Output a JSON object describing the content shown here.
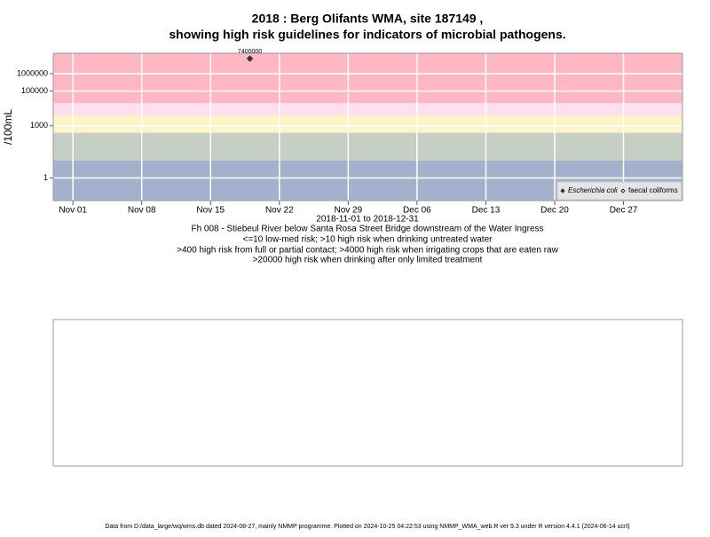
{
  "chart_data": {
    "type": "scatter",
    "title": "2018 : Berg Olifants WMA, site 187149 ,",
    "subtitle": "showing high risk guidelines for indicators of microbial pathogens.",
    "y_label": "/100mL",
    "x_label": "2018-11-01 to 2018-12-31",
    "notes": [
      "Fh 008 - Stiebeul River below Santa Rosa Street Bridge downstream of the Water Ingress",
      "<=10 low-med risk; >10 high risk when drinking untreated water",
      ">400 high risk from full or partial contact; >4000 high risk when irrigating crops that are eaten raw",
      ">20000 high risk when drinking after only limited treatment"
    ],
    "footer": "Data from D:/data_large/wq/wms.db dated 2024-08-27, mainly NMMP programme. Plotted on 2024-10-25 04:22:53 using NMMP_WMA_web.R ver 9.3 under R version 4.4.1 (2024-06-14 ucrt)",
    "log_y": true,
    "grid": true,
    "legend_position": "bottom-right",
    "thresholds": [
      10,
      400,
      4000,
      20000
    ],
    "band_colors": [
      "#a3b1cc",
      "#c6cfc4",
      "#fdf5c8",
      "#fde0ee",
      "#ffb7c3"
    ],
    "xlim": [
      "2018-10-30",
      "2019-01-02"
    ],
    "xticks": [
      {
        "value": "2018-11-01",
        "label": "Nov 01"
      },
      {
        "value": "2018-11-08",
        "label": "Nov 08"
      },
      {
        "value": "2018-11-15",
        "label": "Nov 15"
      },
      {
        "value": "2018-11-22",
        "label": "Nov 22"
      },
      {
        "value": "2018-11-29",
        "label": "Nov 29"
      },
      {
        "value": "2018-12-06",
        "label": "Dec 06"
      },
      {
        "value": "2018-12-13",
        "label": "Dec 13"
      },
      {
        "value": "2018-12-20",
        "label": "Dec 20"
      },
      {
        "value": "2018-12-27",
        "label": "Dec 27"
      }
    ],
    "ylim": [
      0.05,
      15000000
    ],
    "yticks": [
      1,
      1000,
      100000,
      1000000
    ],
    "series": [
      {
        "name": "Escherichia coli",
        "color": "#333333",
        "x": [
          "2018-11-19"
        ],
        "values": [
          7400000
        ]
      },
      {
        "name": "faecal coliforms",
        "color": "#333333",
        "x": [],
        "values": []
      }
    ]
  }
}
